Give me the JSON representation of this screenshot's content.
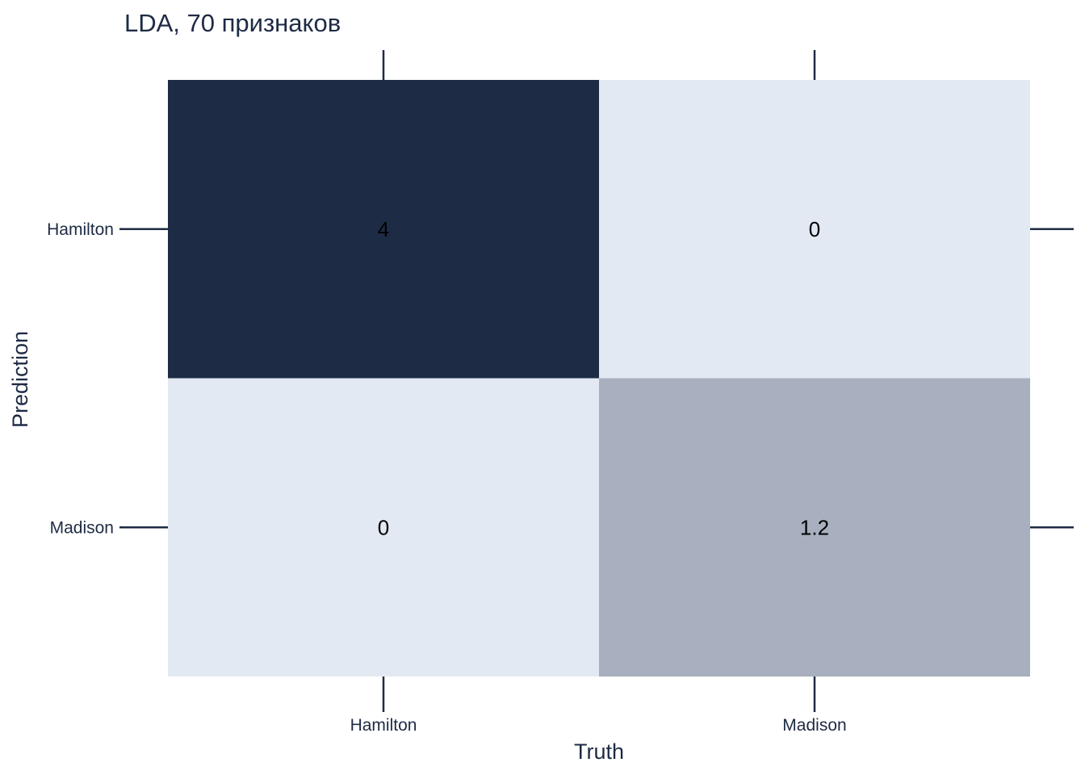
{
  "chart_data": {
    "type": "heatmap",
    "title": "LDA, 70 признаков",
    "xlabel": "Truth",
    "ylabel": "Prediction",
    "x_categories": [
      "Hamilton",
      "Madison"
    ],
    "y_categories": [
      "Hamilton",
      "Madison"
    ],
    "values": [
      [
        4,
        0
      ],
      [
        0,
        1.2
      ]
    ],
    "value_labels": [
      [
        "4",
        "0"
      ],
      [
        "0",
        "1.2"
      ]
    ],
    "color_scale": {
      "low": "#e3e9f3",
      "high": "#1e2b45"
    },
    "value_range": [
      0,
      4
    ],
    "grid": false,
    "legend": "none"
  }
}
